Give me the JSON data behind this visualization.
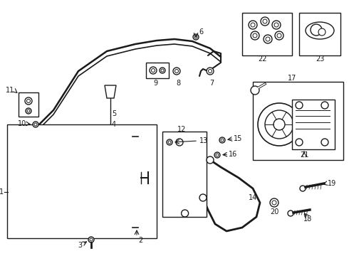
{
  "background": "#ffffff",
  "line_color": "#1a1a1a",
  "fig_width": 4.9,
  "fig_height": 3.6,
  "dpi": 100
}
